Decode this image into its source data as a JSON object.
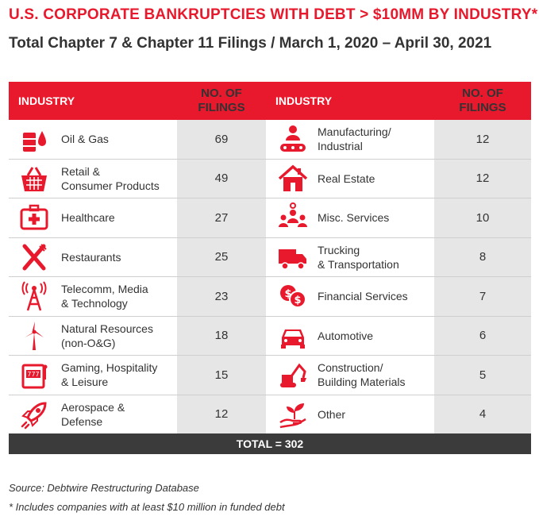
{
  "title": "U.S. CORPORATE BANKRUPTCIES WITH DEBT > $10MM BY INDUSTRY*",
  "subtitle": "Total Chapter 7 & Chapter 11 Filings / March 1, 2020 – April 30, 2021",
  "colors": {
    "accent": "#e8192c",
    "number_column": "#e6e6e6",
    "total_bar": "#3b3b3b"
  },
  "table": {
    "header": {
      "industry": "INDUSTRY",
      "filings_line1": "NO. OF",
      "filings_line2": "FILINGS"
    },
    "total": "TOTAL = 302"
  },
  "chart_data": {
    "type": "table",
    "title": "U.S. CORPORATE BANKRUPTCIES WITH DEBT > $10MM BY INDUSTRY*",
    "columns": [
      "INDUSTRY",
      "NO. OF FILINGS"
    ],
    "rows": [
      {
        "industry": "Oil & Gas",
        "filings": 69,
        "icon": "oil-barrel-icon"
      },
      {
        "industry": "Retail & Consumer Products",
        "filings": 49,
        "icon": "shopping-basket-icon"
      },
      {
        "industry": "Healthcare",
        "filings": 27,
        "icon": "first-aid-kit-icon"
      },
      {
        "industry": "Restaurants",
        "filings": 25,
        "icon": "fork-knife-icon"
      },
      {
        "industry": "Telecomm, Media & Technology",
        "filings": 23,
        "icon": "radio-tower-icon"
      },
      {
        "industry": "Natural Resources (non-O&G)",
        "filings": 18,
        "icon": "wind-turbine-icon"
      },
      {
        "industry": "Gaming, Hospitality & Leisure",
        "filings": 15,
        "icon": "slot-machine-icon"
      },
      {
        "industry": "Aerospace & Defense",
        "filings": 12,
        "icon": "rocket-icon"
      },
      {
        "industry": "Manufacturing/ Industrial",
        "filings": 12,
        "icon": "conveyor-worker-icon"
      },
      {
        "industry": "Real Estate",
        "filings": 12,
        "icon": "house-icon"
      },
      {
        "industry": "Misc. Services",
        "filings": 10,
        "icon": "people-group-icon"
      },
      {
        "industry": "Trucking & Transportation",
        "filings": 8,
        "icon": "truck-icon"
      },
      {
        "industry": "Financial Services",
        "filings": 7,
        "icon": "dollar-coins-icon"
      },
      {
        "industry": "Automotive",
        "filings": 6,
        "icon": "car-icon"
      },
      {
        "industry": "Construction/ Building Materials",
        "filings": 5,
        "icon": "excavator-icon"
      },
      {
        "industry": "Other",
        "filings": 4,
        "icon": "hand-plant-icon"
      }
    ],
    "left_labels": [
      [
        "Oil & Gas"
      ],
      [
        "Retail &",
        "Consumer Products"
      ],
      [
        "Healthcare"
      ],
      [
        "Restaurants"
      ],
      [
        "Telecomm, Media",
        "& Technology"
      ],
      [
        "Natural Resources",
        "(non-O&G)"
      ],
      [
        "Gaming, Hospitality",
        "& Leisure"
      ],
      [
        "Aerospace &",
        "Defense"
      ]
    ],
    "right_labels": [
      [
        "Manufacturing/",
        "Industrial"
      ],
      [
        "Real Estate"
      ],
      [
        "Misc. Services"
      ],
      [
        "Trucking",
        "& Transportation"
      ],
      [
        "Financial Services"
      ],
      [
        "Automotive"
      ],
      [
        "Construction/",
        "Building Materials"
      ],
      [
        "Other"
      ]
    ],
    "total": 302
  },
  "footer": {
    "source": "Source: Debtwire Restructuring Database",
    "note": "* Includes companies with at least $10 million in funded debt"
  }
}
